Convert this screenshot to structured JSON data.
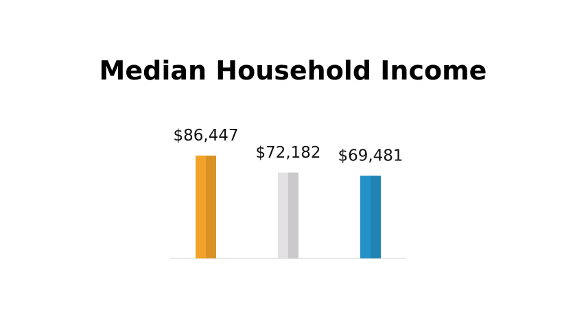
{
  "chart_data": {
    "type": "bar",
    "title": "Median Household Income",
    "categories": [
      null,
      null,
      null
    ],
    "values": [
      86447,
      72182,
      69481
    ],
    "value_labels": [
      "$86,447",
      "$72,182",
      "$69,481"
    ],
    "colors": [
      "#f0a328",
      "#e3e0e4",
      "#2492c7"
    ]
  }
}
